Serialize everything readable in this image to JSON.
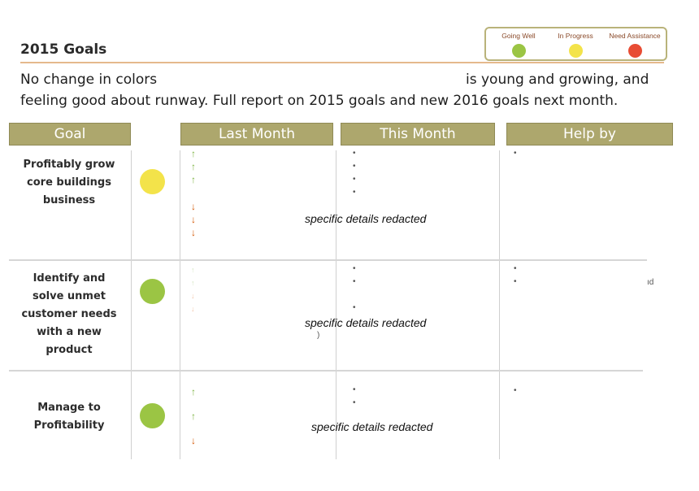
{
  "page": {
    "title": "2015 Goals",
    "intro_line1_left": "No change in colors",
    "intro_line1_right": "is young and growing, and",
    "intro_line2": "feeling good about runway. Full report on 2015 goals and new 2016 goals next month."
  },
  "legend": {
    "items": [
      {
        "label": "Going Well",
        "color": "#9bc544"
      },
      {
        "label": "In Progress",
        "color": "#f3e34a"
      },
      {
        "label": "Need Assistance",
        "color": "#e84c34"
      }
    ]
  },
  "table": {
    "headers": {
      "goal": "Goal",
      "last_month": "Last Month",
      "this_month": "This Month",
      "help_by": "Help by"
    },
    "rows": [
      {
        "goal": "Profitably grow core buildings business",
        "status": "In Progress",
        "status_color": "#f3e34a",
        "redacted_note": "specific details redacted",
        "fragment": "",
        "help_fragment": ""
      },
      {
        "goal": "Identify and solve unmet customer needs with a new product",
        "status": "Going Well",
        "status_color": "#9bc544",
        "redacted_note": "specific details redacted",
        "fragment": ")",
        "help_fragment": "ıd"
      },
      {
        "goal": "Manage to Profitability",
        "status": "Going Well",
        "status_color": "#9bc544",
        "redacted_note": "specific details redacted",
        "fragment": "",
        "help_fragment": ""
      }
    ]
  },
  "glyphs": {
    "up_arrow": "↑",
    "down_arrow": "↓",
    "bullet": "•"
  }
}
